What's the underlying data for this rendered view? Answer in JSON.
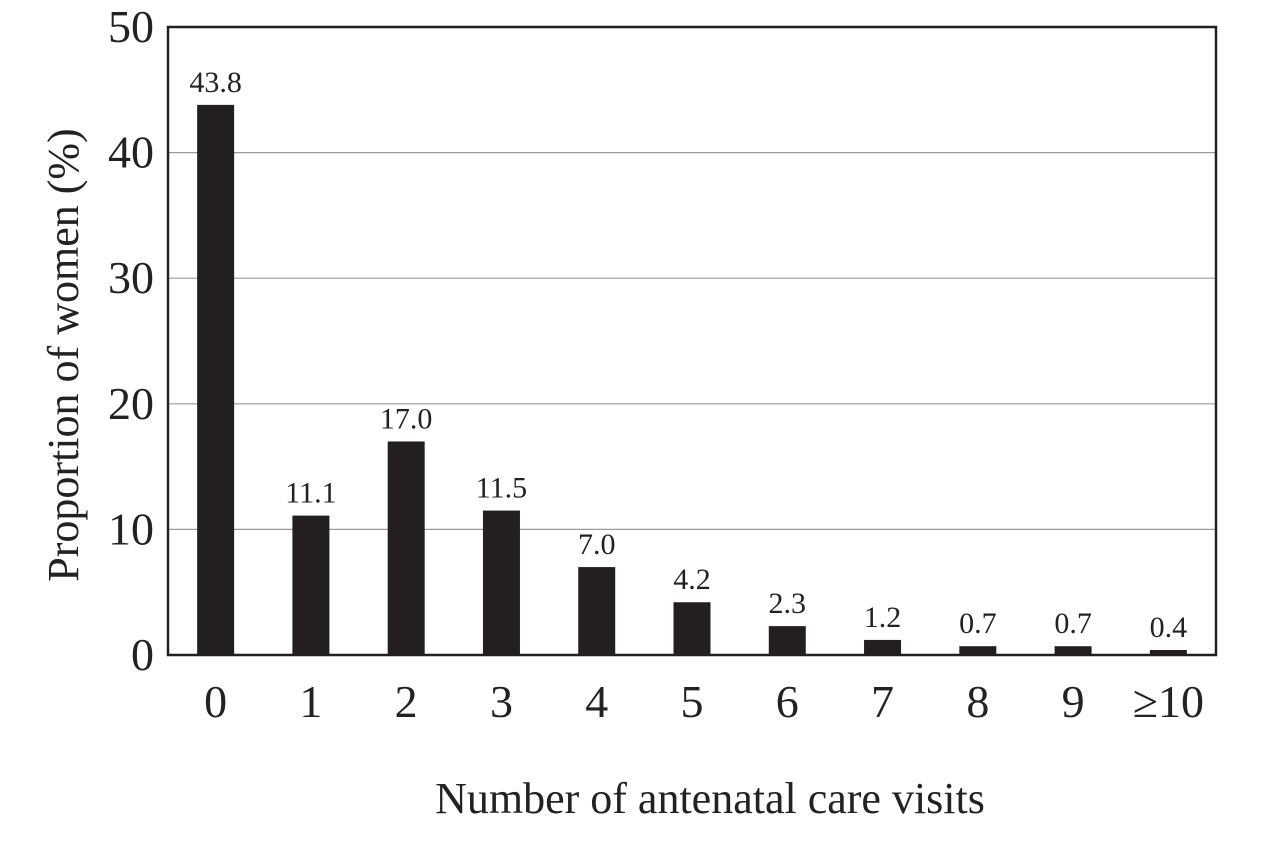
{
  "chart_data": {
    "type": "bar",
    "title": "",
    "xlabel": "Number of antenatal care visits",
    "ylabel": "Proportion of women (%)",
    "categories": [
      "0",
      "1",
      "2",
      "3",
      "4",
      "5",
      "6",
      "7",
      "8",
      "9",
      "≥10"
    ],
    "values": [
      43.8,
      11.1,
      17.0,
      11.5,
      7.0,
      4.2,
      2.3,
      1.2,
      0.7,
      0.7,
      0.4
    ],
    "data_labels": [
      "43.8",
      "11.1",
      "17.0",
      "11.5",
      "7.0",
      "4.2",
      "2.3",
      "1.2",
      "0.7",
      "0.7",
      "0.4"
    ],
    "yticks": [
      0,
      10,
      20,
      30,
      40,
      50
    ],
    "ylim": [
      0,
      50
    ],
    "grid": true,
    "legend": "none",
    "colors": {
      "bar": "#231f20",
      "grid": "#9a9a9a",
      "axis": "#231f20"
    }
  }
}
